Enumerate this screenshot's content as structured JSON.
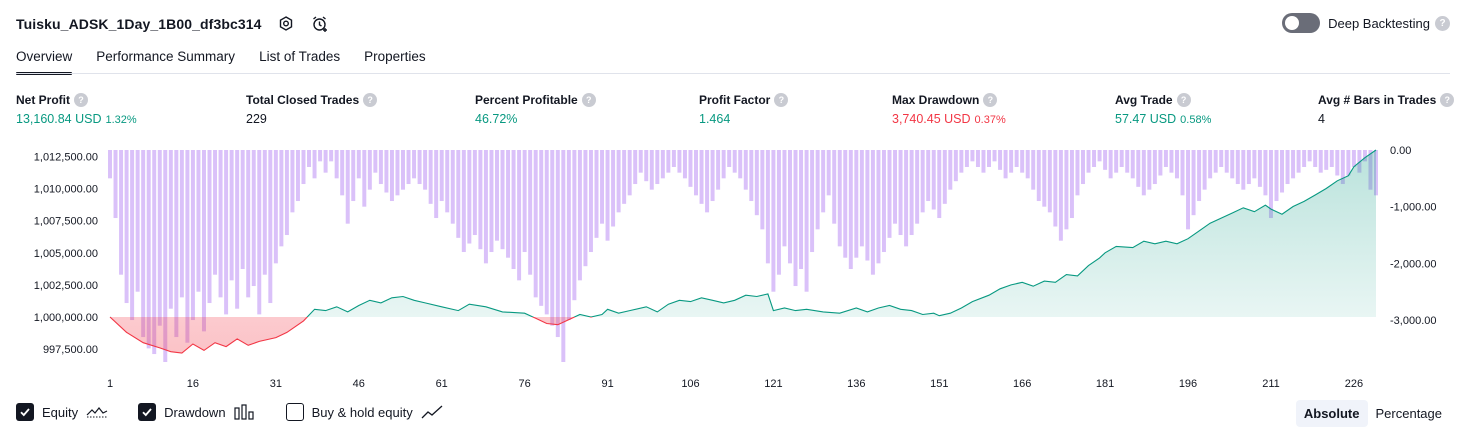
{
  "header": {
    "title": "Tuisku_ADSK_1Day_1B00_df3bc314",
    "deep_backtesting_label": "Deep Backtesting",
    "help_glyph": "?"
  },
  "tabs": [
    "Overview",
    "Performance Summary",
    "List of Trades",
    "Properties"
  ],
  "metrics": [
    {
      "label": "Net Profit",
      "value": "13,160.84 USD",
      "pct": "1.32%",
      "color": "green"
    },
    {
      "label": "Total Closed Trades",
      "value": "229",
      "pct": "",
      "color": "neutral"
    },
    {
      "label": "Percent Profitable",
      "value": "46.72%",
      "pct": "",
      "color": "green"
    },
    {
      "label": "Profit Factor",
      "value": "1.464",
      "pct": "",
      "color": "green"
    },
    {
      "label": "Max Drawdown",
      "value": "3,740.45 USD",
      "pct": "0.37%",
      "color": "red"
    },
    {
      "label": "Avg Trade",
      "value": "57.47 USD",
      "pct": "0.58%",
      "color": "green"
    },
    {
      "label": "Avg # Bars in Trades",
      "value": "4",
      "pct": "",
      "color": "neutral"
    }
  ],
  "legend": {
    "equity_label": "Equity",
    "drawdown_label": "Drawdown",
    "buyhold_label": "Buy & hold equity",
    "equity_checked": true,
    "drawdown_checked": true,
    "buyhold_checked": false
  },
  "modes": {
    "absolute_label": "Absolute",
    "percentage_label": "Percentage"
  },
  "colors": {
    "equity_positive": "#089981",
    "equity_negative": "#f23645",
    "drawdown_bar": "#d4b6f8",
    "text": "#131722"
  },
  "chart_data": {
    "type": "area",
    "x_ticks": [
      1,
      16,
      31,
      46,
      61,
      76,
      91,
      106,
      121,
      136,
      151,
      166,
      181,
      196,
      211,
      226
    ],
    "x_range": [
      1,
      230
    ],
    "left_axis": {
      "ticks": [
        1012500,
        1010000,
        1007500,
        1005000,
        1002500,
        1000000,
        997500
      ],
      "tick_labels": [
        "1,012,500.00",
        "1,010,000.00",
        "1,007,500.00",
        "1,005,000.00",
        "1,002,500.00",
        "1,000,000.00",
        "997,500.00"
      ],
      "range": [
        996500,
        1013000
      ],
      "baseline": 1000000
    },
    "right_axis": {
      "ticks": [
        0,
        -1000,
        -2000,
        -3000
      ],
      "tick_labels": [
        "0.00",
        "-1,000.00",
        "-2,000.00",
        "-3,000.00"
      ],
      "range": [
        -3740.45,
        0
      ]
    },
    "series": [
      {
        "name": "Equity",
        "type": "line",
        "anchors": [
          [
            1,
            1000000
          ],
          [
            4,
            998800
          ],
          [
            7,
            998000
          ],
          [
            10,
            997600
          ],
          [
            12,
            997300
          ],
          [
            14,
            997200
          ],
          [
            16,
            997900
          ],
          [
            18,
            997400
          ],
          [
            20,
            998000
          ],
          [
            22,
            997700
          ],
          [
            24,
            998300
          ],
          [
            26,
            997800
          ],
          [
            28,
            998100
          ],
          [
            31,
            998400
          ],
          [
            33,
            998800
          ],
          [
            36,
            999700
          ],
          [
            38,
            1000600
          ],
          [
            40,
            1000500
          ],
          [
            42,
            1000800
          ],
          [
            44,
            1000400
          ],
          [
            46,
            1000900
          ],
          [
            48,
            1001300
          ],
          [
            50,
            1001100
          ],
          [
            52,
            1001500
          ],
          [
            54,
            1001600
          ],
          [
            56,
            1001300
          ],
          [
            58,
            1001100
          ],
          [
            61,
            1000800
          ],
          [
            64,
            1000500
          ],
          [
            66,
            1001000
          ],
          [
            69,
            1000800
          ],
          [
            72,
            1000400
          ],
          [
            76,
            1000300
          ],
          [
            78,
            999900
          ],
          [
            80,
            999500
          ],
          [
            82,
            999400
          ],
          [
            84,
            999800
          ],
          [
            86,
            1000200
          ],
          [
            88,
            1000000
          ],
          [
            90,
            1000200
          ],
          [
            91,
            1000600
          ],
          [
            93,
            1000300
          ],
          [
            95,
            1000500
          ],
          [
            98,
            1000800
          ],
          [
            100,
            1000400
          ],
          [
            102,
            1001000
          ],
          [
            104,
            1001300
          ],
          [
            106,
            1001200
          ],
          [
            108,
            1001500
          ],
          [
            110,
            1001300
          ],
          [
            112,
            1001100
          ],
          [
            114,
            1001300
          ],
          [
            116,
            1001700
          ],
          [
            118,
            1001600
          ],
          [
            120,
            1001800
          ],
          [
            121,
            1000500
          ],
          [
            123,
            1000700
          ],
          [
            125,
            1000500
          ],
          [
            127,
            1000600
          ],
          [
            130,
            1000400
          ],
          [
            133,
            1000300
          ],
          [
            136,
            1000700
          ],
          [
            138,
            1000400
          ],
          [
            140,
            1000700
          ],
          [
            142,
            1000900
          ],
          [
            144,
            1000600
          ],
          [
            146,
            1000500
          ],
          [
            148,
            1000200
          ],
          [
            150,
            1000300
          ],
          [
            151,
            1000100
          ],
          [
            153,
            1000300
          ],
          [
            155,
            1000700
          ],
          [
            157,
            1001200
          ],
          [
            160,
            1001700
          ],
          [
            162,
            1002200
          ],
          [
            164,
            1002500
          ],
          [
            166,
            1002700
          ],
          [
            168,
            1002400
          ],
          [
            170,
            1002800
          ],
          [
            172,
            1002700
          ],
          [
            174,
            1003300
          ],
          [
            176,
            1003200
          ],
          [
            178,
            1004000
          ],
          [
            180,
            1004600
          ],
          [
            181,
            1005000
          ],
          [
            183,
            1005500
          ],
          [
            186,
            1005400
          ],
          [
            188,
            1005900
          ],
          [
            190,
            1005700
          ],
          [
            192,
            1005900
          ],
          [
            194,
            1005700
          ],
          [
            196,
            1006100
          ],
          [
            198,
            1006700
          ],
          [
            200,
            1007300
          ],
          [
            202,
            1007700
          ],
          [
            204,
            1008100
          ],
          [
            206,
            1008500
          ],
          [
            208,
            1008200
          ],
          [
            210,
            1008700
          ],
          [
            211,
            1008400
          ],
          [
            213,
            1008000
          ],
          [
            215,
            1008600
          ],
          [
            217,
            1009000
          ],
          [
            219,
            1009500
          ],
          [
            221,
            1010000
          ],
          [
            223,
            1010600
          ],
          [
            225,
            1011000
          ],
          [
            226,
            1011700
          ],
          [
            228,
            1012400
          ],
          [
            230,
            1013000
          ]
        ]
      },
      {
        "name": "Drawdown",
        "type": "bar",
        "anchors": [
          [
            1,
            -500
          ],
          [
            2,
            -1200
          ],
          [
            3,
            -2200
          ],
          [
            4,
            -2700
          ],
          [
            5,
            -3000
          ],
          [
            6,
            -2500
          ],
          [
            7,
            -3300
          ],
          [
            8,
            -3500
          ],
          [
            9,
            -3600
          ],
          [
            10,
            -3100
          ],
          [
            11,
            -3740.45
          ],
          [
            12,
            -2800
          ],
          [
            13,
            -3300
          ],
          [
            14,
            -2600
          ],
          [
            15,
            -3400
          ],
          [
            16,
            -3000
          ],
          [
            17,
            -2500
          ],
          [
            18,
            -3200
          ],
          [
            19,
            -2700
          ],
          [
            20,
            -2200
          ],
          [
            21,
            -2600
          ],
          [
            22,
            -2900
          ],
          [
            23,
            -2300
          ],
          [
            24,
            -2800
          ],
          [
            25,
            -2100
          ],
          [
            26,
            -2600
          ],
          [
            27,
            -2400
          ],
          [
            28,
            -2900
          ],
          [
            29,
            -2200
          ],
          [
            30,
            -2700
          ],
          [
            31,
            -2000
          ],
          [
            32,
            -1700
          ],
          [
            33,
            -1500
          ],
          [
            34,
            -1100
          ],
          [
            35,
            -900
          ],
          [
            36,
            -600
          ],
          [
            37,
            -300
          ],
          [
            38,
            -500
          ],
          [
            39,
            -200
          ],
          [
            40,
            -400
          ],
          [
            41,
            -200
          ],
          [
            42,
            -500
          ],
          [
            43,
            -800
          ],
          [
            44,
            -1300
          ],
          [
            45,
            -900
          ],
          [
            46,
            -500
          ],
          [
            47,
            -1000
          ],
          [
            48,
            -700
          ],
          [
            49,
            -400
          ],
          [
            50,
            -600
          ],
          [
            52,
            -900
          ],
          [
            54,
            -700
          ],
          [
            56,
            -500
          ],
          [
            58,
            -700
          ],
          [
            60,
            -1200
          ],
          [
            61,
            -900
          ],
          [
            63,
            -1300
          ],
          [
            65,
            -1800
          ],
          [
            67,
            -1500
          ],
          [
            69,
            -2000
          ],
          [
            71,
            -1600
          ],
          [
            73,
            -1900
          ],
          [
            75,
            -2300
          ],
          [
            76,
            -1800
          ],
          [
            78,
            -2600
          ],
          [
            80,
            -2900
          ],
          [
            82,
            -3300
          ],
          [
            83,
            -3740.45
          ],
          [
            84,
            -3000
          ],
          [
            86,
            -2300
          ],
          [
            88,
            -1800
          ],
          [
            90,
            -1300
          ],
          [
            91,
            -1600
          ],
          [
            93,
            -1100
          ],
          [
            95,
            -800
          ],
          [
            97,
            -400
          ],
          [
            99,
            -700
          ],
          [
            101,
            -500
          ],
          [
            103,
            -300
          ],
          [
            105,
            -500
          ],
          [
            107,
            -800
          ],
          [
            109,
            -1100
          ],
          [
            111,
            -700
          ],
          [
            113,
            -300
          ],
          [
            115,
            -500
          ],
          [
            117,
            -900
          ],
          [
            119,
            -1400
          ],
          [
            120,
            -2000
          ],
          [
            121,
            -2500
          ],
          [
            122,
            -2200
          ],
          [
            123,
            -1700
          ],
          [
            124,
            -2000
          ],
          [
            125,
            -2400
          ],
          [
            126,
            -2100
          ],
          [
            127,
            -2500
          ],
          [
            128,
            -1800
          ],
          [
            129,
            -1400
          ],
          [
            130,
            -1100
          ],
          [
            131,
            -800
          ],
          [
            132,
            -1300
          ],
          [
            133,
            -1700
          ],
          [
            135,
            -2100
          ],
          [
            137,
            -1700
          ],
          [
            139,
            -2200
          ],
          [
            141,
            -1800
          ],
          [
            143,
            -1300
          ],
          [
            145,
            -1700
          ],
          [
            147,
            -1300
          ],
          [
            149,
            -900
          ],
          [
            151,
            -1200
          ],
          [
            153,
            -700
          ],
          [
            155,
            -400
          ],
          [
            157,
            -200
          ],
          [
            159,
            -400
          ],
          [
            161,
            -200
          ],
          [
            163,
            -500
          ],
          [
            165,
            -300
          ],
          [
            167,
            -500
          ],
          [
            169,
            -900
          ],
          [
            171,
            -1100
          ],
          [
            173,
            -1600
          ],
          [
            175,
            -1200
          ],
          [
            176,
            -800
          ],
          [
            178,
            -400
          ],
          [
            180,
            -200
          ],
          [
            182,
            -500
          ],
          [
            184,
            -300
          ],
          [
            186,
            -500
          ],
          [
            188,
            -800
          ],
          [
            190,
            -600
          ],
          [
            192,
            -300
          ],
          [
            194,
            -500
          ],
          [
            195,
            -800
          ],
          [
            196,
            -1400
          ],
          [
            198,
            -900
          ],
          [
            200,
            -500
          ],
          [
            202,
            -300
          ],
          [
            204,
            -500
          ],
          [
            206,
            -700
          ],
          [
            208,
            -500
          ],
          [
            210,
            -800
          ],
          [
            211,
            -1200
          ],
          [
            212,
            -900
          ],
          [
            214,
            -600
          ],
          [
            216,
            -400
          ],
          [
            218,
            -200
          ],
          [
            220,
            -400
          ],
          [
            222,
            -300
          ],
          [
            224,
            -600
          ],
          [
            226,
            -300
          ],
          [
            227,
            -400
          ],
          [
            228,
            -200
          ],
          [
            229,
            -700
          ],
          [
            230,
            -800
          ]
        ]
      }
    ]
  }
}
